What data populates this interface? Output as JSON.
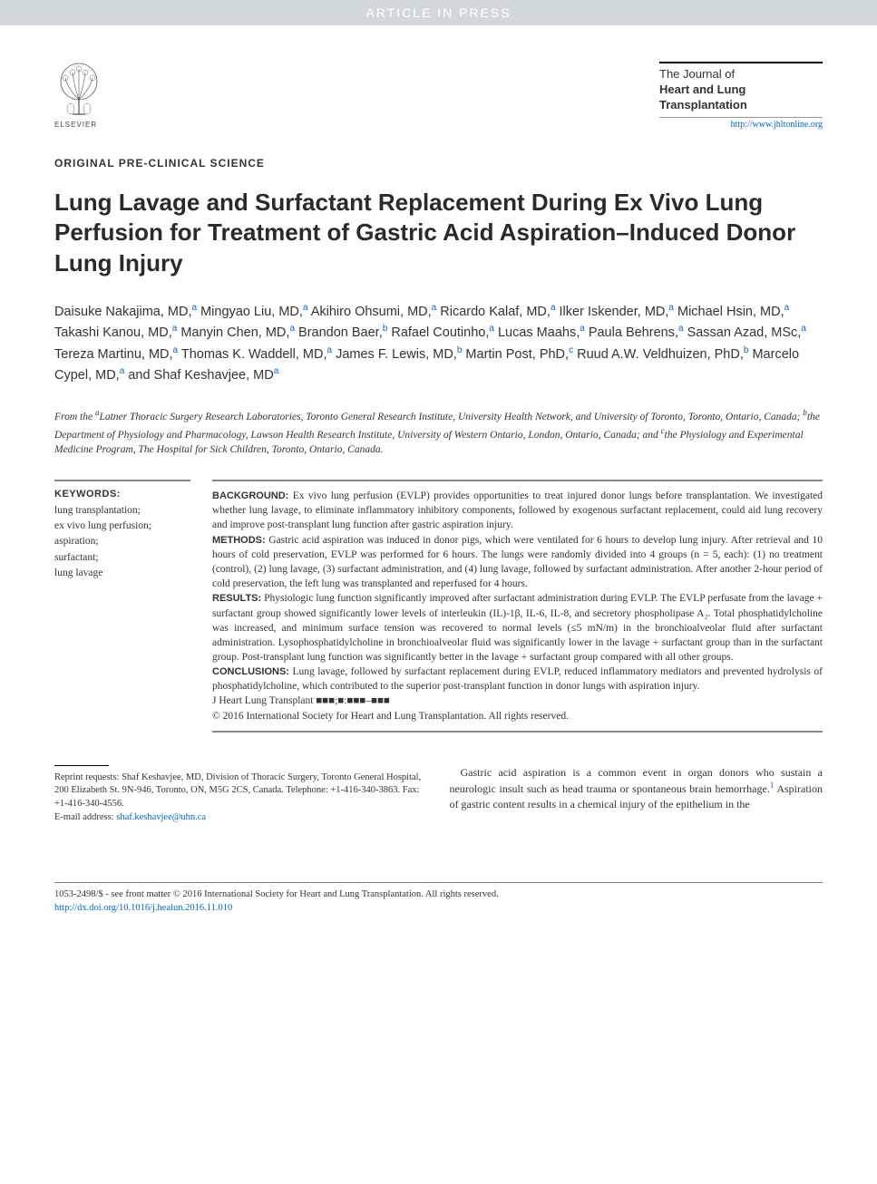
{
  "banner": "ARTICLE IN PRESS",
  "publisher": "ELSEVIER",
  "journal": {
    "line1": "The Journal of",
    "line2": "Heart and Lung",
    "line3": "Transplantation",
    "url": "http://www.jhltonline.org"
  },
  "article_type": "ORIGINAL PRE-CLINICAL SCIENCE",
  "title": "Lung Lavage and Surfactant Replacement During Ex Vivo Lung Perfusion for Treatment of Gastric Acid Aspiration–Induced Donor Lung Injury",
  "authors_html": "Daisuke Nakajima, MD,<sup>a</sup> Mingyao Liu, MD,<sup>a</sup> Akihiro Ohsumi, MD,<sup>a</sup> Ricardo Kalaf, MD,<sup>a</sup> Ilker Iskender, MD,<sup>a</sup> Michael Hsin, MD,<sup>a</sup> Takashi Kanou, MD,<sup>a</sup> Manyin Chen, MD,<sup>a</sup> Brandon Baer,<sup>b</sup> Rafael Coutinho,<sup>a</sup> Lucas Maahs,<sup>a</sup> Paula Behrens,<sup>a</sup> Sassan Azad, MSc,<sup>a</sup> Tereza Martinu, MD,<sup>a</sup> Thomas K. Waddell, MD,<sup>a</sup> James F. Lewis, MD,<sup>b</sup> Martin Post, PhD,<sup>c</sup> Ruud A.W. Veldhuizen, PhD,<sup>b</sup> Marcelo Cypel, MD,<sup>a</sup> and Shaf Keshavjee, MD<sup>a</sup>",
  "affiliations_html": "From the <sup>a</sup>Latner Thoracic Surgery Research Laboratories, Toronto General Research Institute, University Health Network, and University of Toronto, Toronto, Ontario, Canada; <sup>b</sup>the Department of Physiology and Pharmacology, Lawson Health Research Institute, University of Western Ontario, London, Ontario, Canada; and <sup>c</sup>the Physiology and Experimental Medicine Program, The Hospital for Sick Children, Toronto, Ontario, Canada.",
  "keywords": {
    "heading": "KEYWORDS:",
    "items": [
      "lung transplantation;",
      "ex vivo lung perfusion;",
      "aspiration;",
      "surfactant;",
      "lung lavage"
    ]
  },
  "abstract": {
    "background": {
      "label": "BACKGROUND:",
      "text": "Ex vivo lung perfusion (EVLP) provides opportunities to treat injured donor lungs before transplantation. We investigated whether lung lavage, to eliminate inflammatory inhibitory components, followed by exogenous surfactant replacement, could aid lung recovery and improve post-transplant lung function after gastric aspiration injury."
    },
    "methods": {
      "label": "METHODS:",
      "text": "Gastric acid aspiration was induced in donor pigs, which were ventilated for 6 hours to develop lung injury. After retrieval and 10 hours of cold preservation, EVLP was performed for 6 hours. The lungs were randomly divided into 4 groups (n = 5, each): (1) no treatment (control), (2) lung lavage, (3) surfactant administration, and (4) lung lavage, followed by surfactant administration. After another 2-hour period of cold preservation, the left lung was transplanted and reperfused for 4 hours."
    },
    "results": {
      "label": "RESULTS:",
      "text": "Physiologic lung function significantly improved after surfactant administration during EVLP. The EVLP perfusate from the lavage + surfactant group showed significantly lower levels of interleukin (IL)-1β, IL-6, IL-8, and secretory phospholipase A₂. Total phosphatidylcholine was increased, and minimum surface tension was recovered to normal levels (≤5 mN/m) in the bronchioalveolar fluid after surfactant administration. Lysophosphatidylcholine in bronchioalveolar fluid was significantly lower in the lavage + surfactant group than in the surfactant group. Post-transplant lung function was significantly better in the lavage + surfactant group compared with all other groups."
    },
    "conclusions": {
      "label": "CONCLUSIONS:",
      "text": "Lung lavage, followed by surfactant replacement during EVLP, reduced inflammatory mediators and prevented hydrolysis of phosphatidylcholine, which contributed to the superior post-transplant function in donor lungs with aspiration injury."
    },
    "citation": "J Heart Lung Transplant ■■■;■:■■■–■■■",
    "copyright": "© 2016 International Society for Heart and Lung Transplantation. All rights reserved."
  },
  "reprint": {
    "text": "Reprint requests: Shaf Keshavjee, MD, Division of Thoracic Surgery, Toronto General Hospital, 200 Elizabeth St. 9N-946, Toronto, ON, M5G 2CS, Canada. Telephone: +1-416-340-3863. Fax: +1-416-340-4556.",
    "email_label": "E-mail address:",
    "email": "shaf.keshavjee@uhn.ca"
  },
  "body": {
    "para1_html": "Gastric acid aspiration is a common event in organ donors who sustain a neurologic insult such as head trauma or spontaneous brain hemorrhage.<sup>1</sup> Aspiration of gastric content results in a chemical injury of the epithelium in the"
  },
  "footer": {
    "line1": "1053-2498/$ - see front matter © 2016 International Society for Heart and Lung Transplantation. All rights reserved.",
    "doi": "http://dx.doi.org/10.1016/j.healun.2016.11.010"
  },
  "colors": {
    "banner_bg": "#d0d8dc",
    "banner_text": "#ffffff",
    "link": "#0066cc",
    "text": "#333333",
    "rule": "#888888"
  }
}
